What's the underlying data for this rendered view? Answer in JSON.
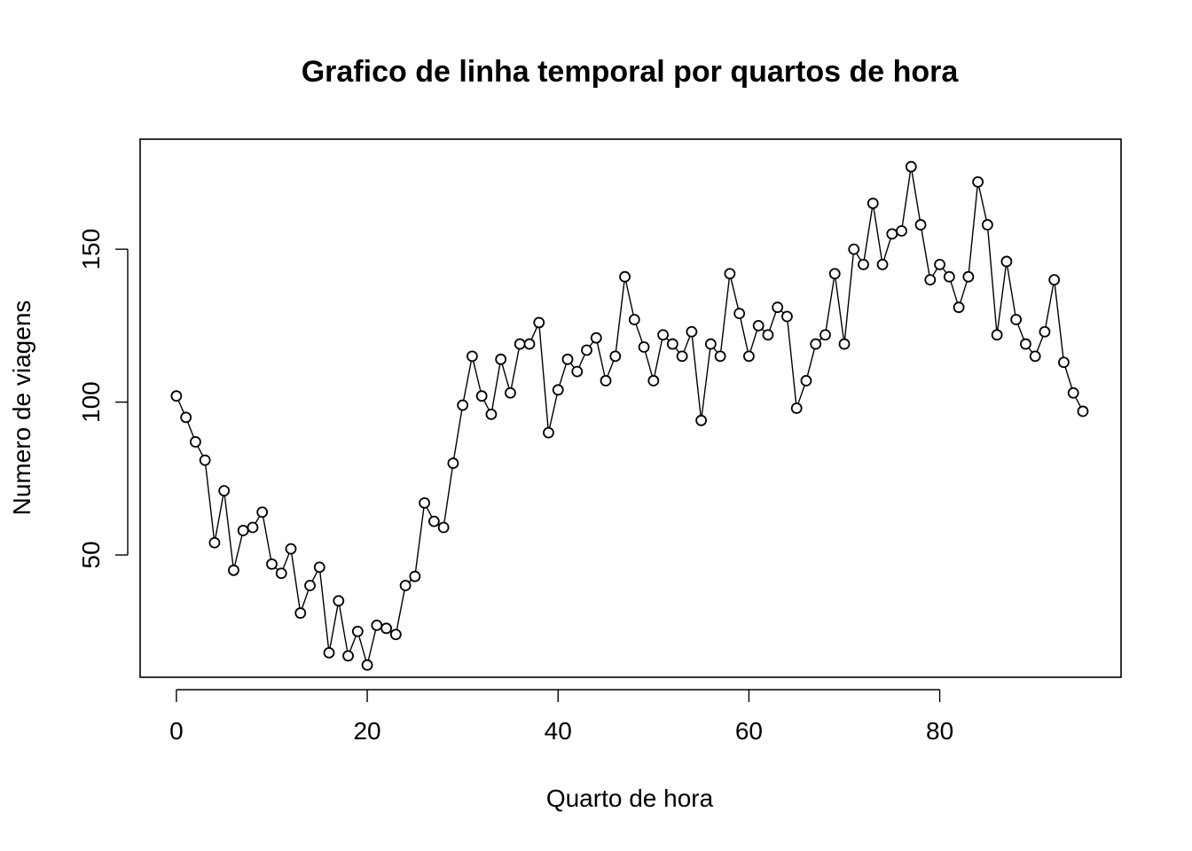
{
  "chart_data": {
    "type": "line",
    "title": "Grafico de linha temporal por quartos de hora",
    "xlabel": "Quarto de hora",
    "ylabel": "Numero de viagens",
    "xlim": [
      -3.8,
      99
    ],
    "ylim": [
      10,
      186
    ],
    "x_ticks": [
      0,
      20,
      40,
      60,
      80
    ],
    "y_ticks": [
      50,
      100,
      150
    ],
    "grid": false,
    "legend": "none",
    "markers": "open-circle",
    "line_color": "#000000",
    "series": [
      {
        "x": [
          0,
          1,
          2,
          3,
          4,
          5,
          6,
          7,
          8,
          9,
          10,
          11,
          12,
          13,
          14,
          15,
          16,
          17,
          18,
          19,
          20,
          21,
          22,
          23,
          24,
          25,
          26,
          27,
          28,
          29,
          30,
          31,
          32,
          33,
          34,
          35,
          36,
          37,
          38,
          39,
          40,
          41,
          42,
          43,
          44,
          45,
          46,
          47,
          48,
          49,
          50,
          51,
          52,
          53,
          54,
          55,
          56,
          57,
          58,
          59,
          60,
          61,
          62,
          63,
          64,
          65,
          66,
          67,
          68,
          69,
          70,
          71,
          72,
          73,
          74,
          75,
          76,
          77,
          78,
          79,
          80,
          81,
          82,
          83,
          84,
          85,
          86,
          87,
          88,
          89,
          90,
          91,
          92,
          93,
          94,
          95
        ],
        "values": [
          102,
          95,
          87,
          81,
          54,
          71,
          45,
          58,
          59,
          64,
          47,
          44,
          52,
          31,
          40,
          46,
          18,
          35,
          17,
          25,
          14,
          27,
          26,
          24,
          40,
          43,
          67,
          61,
          59,
          80,
          99,
          115,
          102,
          96,
          114,
          103,
          119,
          119,
          126,
          90,
          104,
          114,
          110,
          117,
          121,
          107,
          115,
          141,
          127,
          118,
          107,
          122,
          119,
          115,
          123,
          94,
          119,
          115,
          142,
          129,
          115,
          125,
          122,
          131,
          128,
          98,
          107,
          119,
          122,
          142,
          119,
          150,
          145,
          165,
          145,
          155,
          156,
          177,
          158,
          140,
          145,
          141,
          131,
          141,
          172,
          158,
          122,
          146,
          127,
          119,
          115,
          123,
          140,
          113,
          103,
          97
        ]
      }
    ]
  }
}
